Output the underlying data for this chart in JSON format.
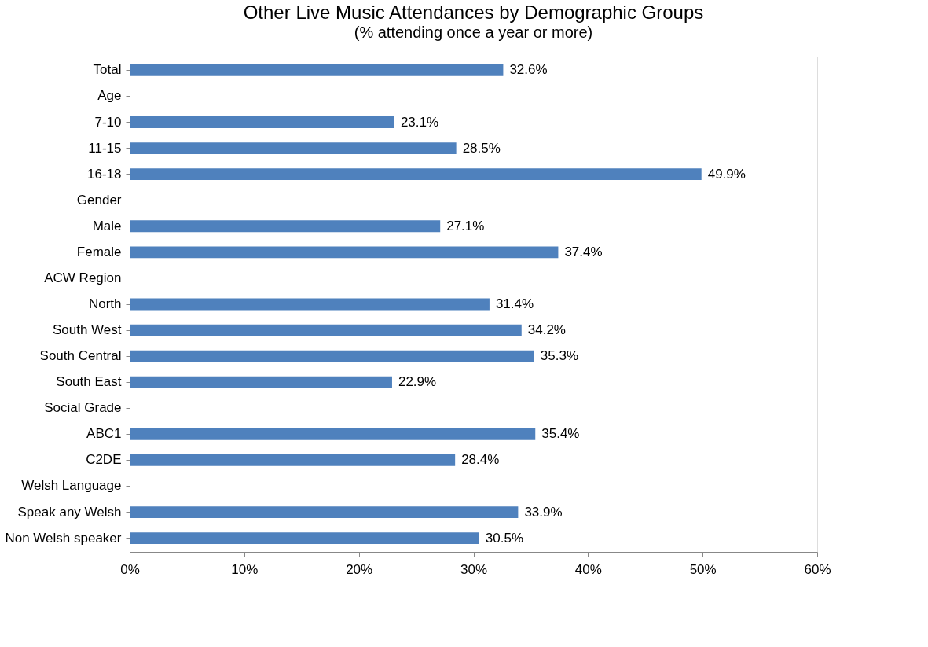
{
  "chart_data": {
    "type": "bar",
    "orientation": "horizontal",
    "title": "Other Live Music Attendances by Demographic Groups",
    "subtitle": "(% attending once a year or more)",
    "categories": [
      "Total",
      "Age",
      "7-10",
      "11-15",
      "16-18",
      "Gender",
      "Male",
      "Female",
      "ACW Region",
      "North",
      "South West",
      "South Central",
      "South East",
      "Social Grade",
      "ABC1",
      "C2DE",
      "Welsh Language",
      "Speak any Welsh",
      "Non Welsh speaker"
    ],
    "values": [
      32.6,
      null,
      23.1,
      28.5,
      49.9,
      null,
      27.1,
      37.4,
      null,
      31.4,
      34.2,
      35.3,
      22.9,
      null,
      35.4,
      28.4,
      null,
      33.9,
      30.5
    ],
    "value_labels": [
      "32.6%",
      null,
      "23.1%",
      "28.5%",
      "49.9%",
      null,
      "27.1%",
      "37.4%",
      null,
      "31.4%",
      "34.2%",
      "35.3%",
      "22.9%",
      null,
      "35.4%",
      "28.4%",
      null,
      "33.9%",
      "30.5%"
    ],
    "color": "#4f81bd",
    "xlim": [
      0,
      60
    ],
    "xticks": [
      {
        "value": 0,
        "label": "0%"
      },
      {
        "value": 10,
        "label": "10%"
      },
      {
        "value": 20,
        "label": "20%"
      },
      {
        "value": 30,
        "label": "30%"
      },
      {
        "value": 40,
        "label": "40%"
      },
      {
        "value": 50,
        "label": "50%"
      },
      {
        "value": 60,
        "label": "60%"
      }
    ],
    "grid": false
  }
}
